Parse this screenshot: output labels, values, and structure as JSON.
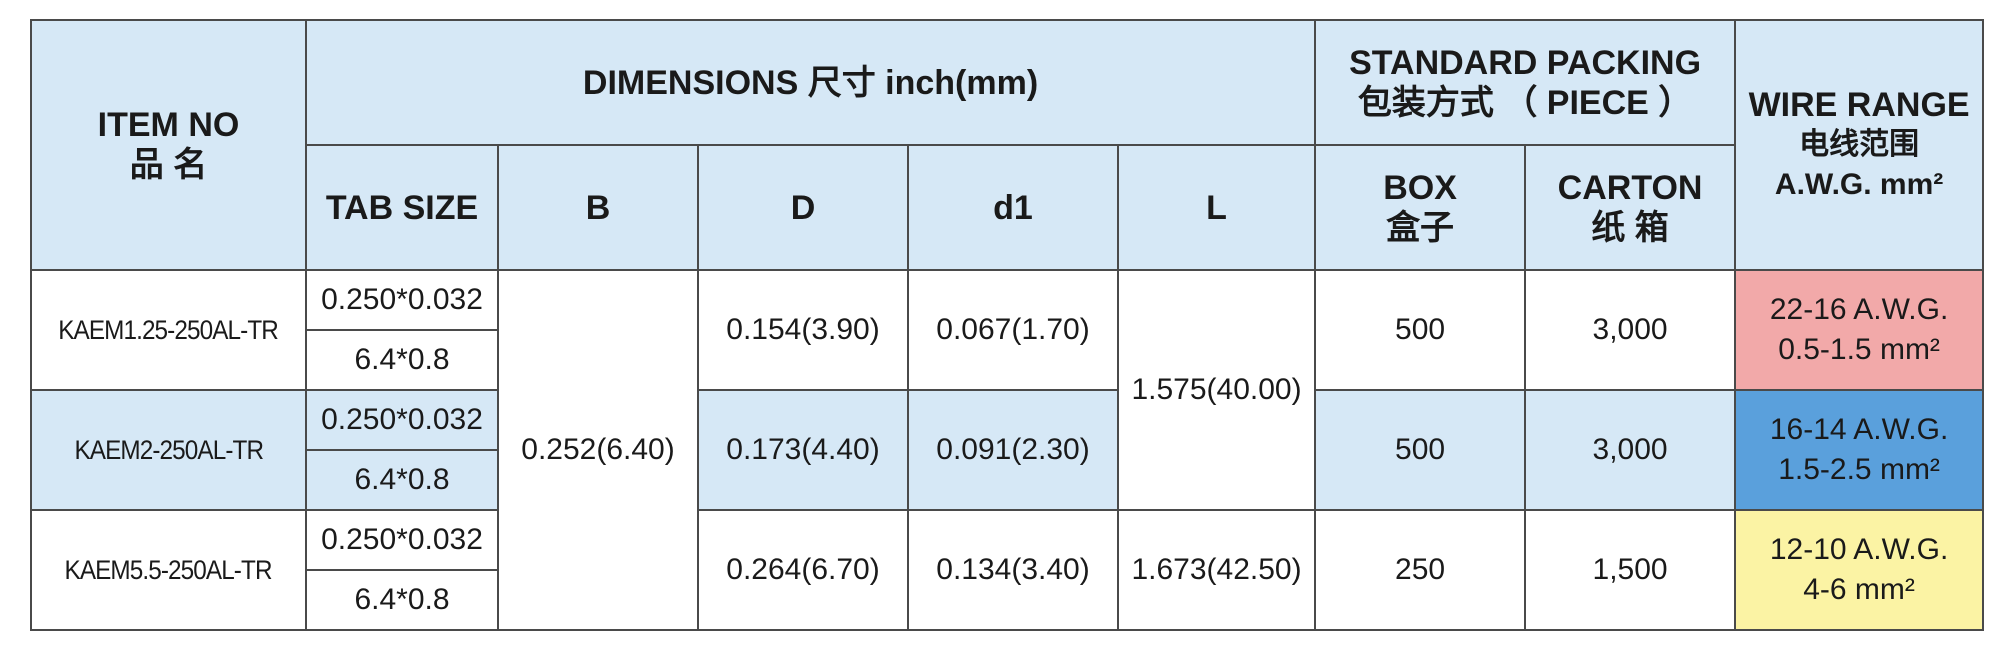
{
  "header": {
    "item_no": "ITEM NO",
    "item_no_cn": "品 名",
    "dimensions": "DIMENSIONS 尺寸  inch(mm)",
    "packing_en": "STANDARD PACKING",
    "packing_cn": "包装方式 （ PIECE ）",
    "wire_range_en": "WIRE RANGE",
    "wire_range_cn": "电线范围",
    "wire_range_unit": "A.W.G.  mm²",
    "tab_size": "TAB SIZE",
    "b": "B",
    "d": "D",
    "d1": "d1",
    "l": "L",
    "box_en": "BOX",
    "box_cn": "盒子",
    "carton_en": "CARTON",
    "carton_cn": "纸 箱"
  },
  "shared": {
    "b_value": "0.252(6.40)",
    "l_value_1_2": "1.575(40.00)"
  },
  "rows": [
    {
      "item": "KAEM1.25-250AL-TR",
      "tab_inch": "0.250*0.032",
      "tab_mm": "6.4*0.8",
      "d": "0.154(3.90)",
      "d1": "0.067(1.70)",
      "box": "500",
      "carton": "3,000",
      "wire_awg": "22-16 A.W.G.",
      "wire_mm": "0.5-1.5  mm²",
      "wire_color": "#f2a9a9"
    },
    {
      "item": "KAEM2-250AL-TR",
      "tab_inch": "0.250*0.032",
      "tab_mm": "6.4*0.8",
      "d": "0.173(4.40)",
      "d1": "0.091(2.30)",
      "box": "500",
      "carton": "3,000",
      "wire_awg": "16-14 A.W.G.",
      "wire_mm": "1.5-2.5  mm²",
      "wire_color": "#5aa0dc"
    },
    {
      "item": "KAEM5.5-250AL-TR",
      "tab_inch": "0.250*0.032",
      "tab_mm": "6.4*0.8",
      "d": "0.264(6.70)",
      "d1": "0.134(3.40)",
      "l": "1.673(42.50)",
      "box": "250",
      "carton": "1,500",
      "wire_awg": "12-10  A.W.G.",
      "wire_mm": "4-6  mm²",
      "wire_color": "#fbf3a4"
    }
  ],
  "colors": {
    "header_bg": "#d6e8f6",
    "border": "#4a4a4a"
  }
}
